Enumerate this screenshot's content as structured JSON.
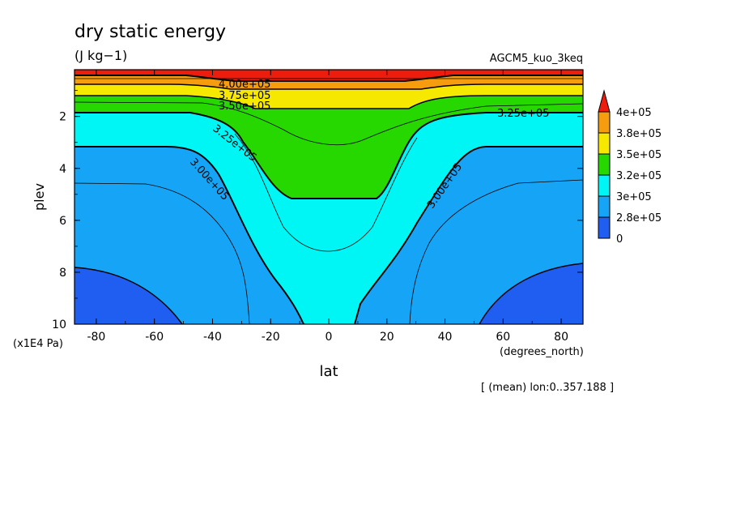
{
  "chart_data": {
    "type": "contour",
    "title": "dry static energy",
    "units": "(J kg−1)",
    "experiment": "AGCM5_kuo_3keq",
    "xlabel": "lat",
    "xunits": "(degrees_north)",
    "ylabel": "plev",
    "yunits": "(x1E4 Pa)",
    "footnote": "[ (mean) lon:0..357.188 ]",
    "xlim": [
      -87.5,
      87.5
    ],
    "ylim": [
      10,
      0.2
    ],
    "x_ticks": [
      "-80",
      "-60",
      "-40",
      "-20",
      "0",
      "20",
      "40",
      "60",
      "80"
    ],
    "y_ticks": [
      "2",
      "4",
      "6",
      "8",
      "10"
    ],
    "contour_labels": [
      "4.00e+05",
      "3.75e+05",
      "3.50e+05",
      "3.25e+05",
      "3.25e+05",
      "3.00e+05",
      "3.00e+05"
    ],
    "colorbar": {
      "labels": [
        "4e+05",
        "3.8e+05",
        "3.5e+05",
        "3.2e+05",
        "3e+05",
        "2.8e+05",
        "0"
      ],
      "colors": [
        "#ee1c0d",
        "#f59c0f",
        "#f7e800",
        "#26d800",
        "#00f5f5",
        "#16a5f6",
        "#1f5ef0"
      ]
    },
    "fill_colors": {
      "c260": "#1f5ef0",
      "c280": "#16a5f6",
      "c300": "#00f5f5",
      "c325": "#26d800",
      "c350": "#f7e800",
      "c375": "#f59c0f",
      "c400": "#ee1c0d"
    }
  }
}
